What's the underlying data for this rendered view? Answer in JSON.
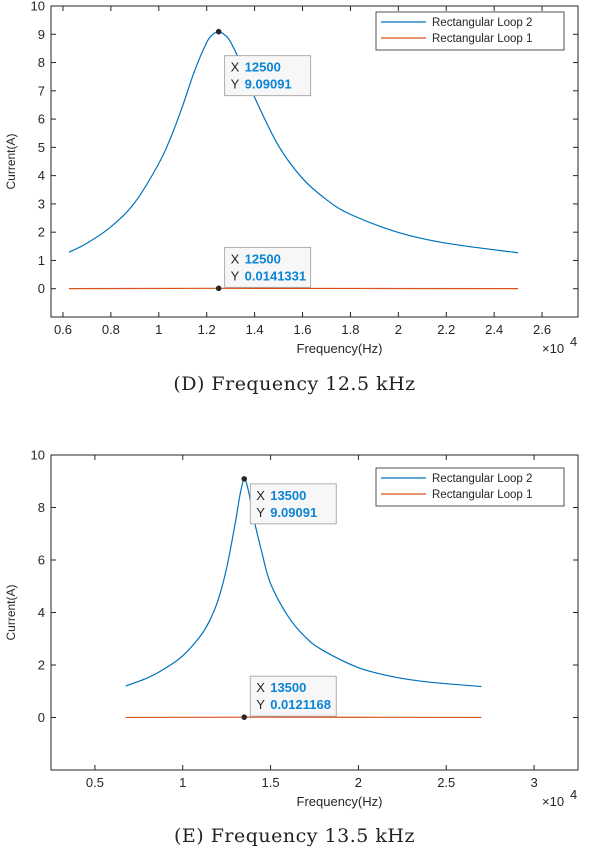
{
  "chart_data": [
    {
      "type": "line",
      "caption": "(D) Frequency 12.5 kHz",
      "xlabel": "Frequency(Hz)",
      "ylabel": "Current(A)",
      "x_exponent_label": "×10",
      "x_exponent_power": "4",
      "xlim": [
        5500,
        27500
      ],
      "ylim": [
        -1,
        10
      ],
      "xticks": [
        6000,
        8000,
        10000,
        12000,
        14000,
        16000,
        18000,
        20000,
        22000,
        24000,
        26000
      ],
      "xtick_labels": [
        "0.6",
        "0.8",
        "1",
        "1.2",
        "1.4",
        "1.6",
        "1.8",
        "2",
        "2.2",
        "2.4",
        "2.6"
      ],
      "yticks": [
        0,
        1,
        2,
        3,
        4,
        5,
        6,
        7,
        8,
        9,
        10
      ],
      "ytick_labels": [
        "0",
        "1",
        "2",
        "3",
        "4",
        "5",
        "6",
        "7",
        "8",
        "9",
        "10"
      ],
      "legend_placement": "top-right",
      "series": [
        {
          "name": "Rectangular Loop 2",
          "color": "#0072bd",
          "x": [
            6250,
            7000,
            8000,
            9000,
            10000,
            10500,
            11000,
            11500,
            12000,
            12250,
            12500,
            12750,
            13000,
            13500,
            14000,
            15000,
            16000,
            17000,
            18000,
            20000,
            22000,
            25000
          ],
          "y": [
            1.29,
            1.61,
            2.19,
            3.05,
            4.43,
            5.35,
            6.48,
            7.72,
            8.71,
            8.99,
            9.09,
            8.98,
            8.72,
            7.83,
            6.77,
            5.05,
            3.9,
            3.15,
            2.63,
            1.99,
            1.61,
            1.27
          ]
        },
        {
          "name": "Rectangular Loop 1",
          "color": "#d95319",
          "x": [
            6250,
            12500,
            25000
          ],
          "y": [
            0.003,
            0.0141331,
            0.003
          ]
        }
      ],
      "datatips": [
        {
          "x_key": "X",
          "x_value": "12500",
          "y_key": "Y",
          "y_value": "9.09091",
          "x": 12500,
          "y": 9.09091
        },
        {
          "x_key": "X",
          "x_value": "12500",
          "y_key": "Y",
          "y_value": "0.0141331",
          "x": 12500,
          "y": 0.0141331
        }
      ]
    },
    {
      "type": "line",
      "caption": "(E) Frequency 13.5 kHz",
      "xlabel": "Frequency(Hz)",
      "ylabel": "Current(A)",
      "x_exponent_label": "×10",
      "x_exponent_power": "4",
      "xlim": [
        2500,
        32500
      ],
      "ylim": [
        -2,
        10
      ],
      "xticks": [
        5000,
        10000,
        15000,
        20000,
        25000,
        30000
      ],
      "xtick_labels": [
        "0.5",
        "1",
        "1.5",
        "2",
        "2.5",
        "3"
      ],
      "yticks": [
        0,
        2,
        4,
        6,
        8,
        10
      ],
      "ytick_labels": [
        "0",
        "2",
        "4",
        "6",
        "8",
        "10"
      ],
      "legend_placement": "top-right",
      "series": [
        {
          "name": "Rectangular Loop 2",
          "color": "#0072bd",
          "x": [
            6750,
            8000,
            9000,
            10000,
            11000,
            11500,
            12000,
            12500,
            13000,
            13250,
            13500,
            13750,
            14000,
            14500,
            15000,
            16000,
            17000,
            18000,
            20000,
            22000,
            24000,
            27000
          ],
          "y": [
            1.2,
            1.51,
            1.87,
            2.35,
            3.1,
            3.65,
            4.45,
            5.7,
            7.45,
            8.45,
            9.09,
            8.6,
            7.7,
            6.3,
            5.1,
            3.85,
            3.05,
            2.55,
            1.9,
            1.55,
            1.35,
            1.18
          ]
        },
        {
          "name": "Rectangular Loop 1",
          "color": "#d95319",
          "x": [
            6750,
            13500,
            27000
          ],
          "y": [
            0.003,
            0.0121168,
            0.003
          ]
        }
      ],
      "datatips": [
        {
          "x_key": "X",
          "x_value": "13500",
          "y_key": "Y",
          "y_value": "9.09091",
          "x": 13500,
          "y": 9.09091
        },
        {
          "x_key": "X",
          "x_value": "13500",
          "y_key": "Y",
          "y_value": "0.0121168",
          "x": 13500,
          "y": 0.0121168
        }
      ]
    }
  ]
}
